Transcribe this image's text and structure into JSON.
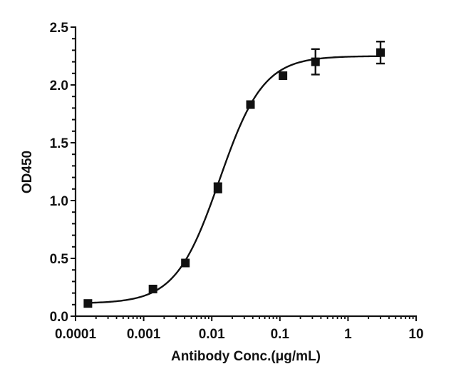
{
  "chart_data": {
    "type": "scatter",
    "title": "",
    "xlabel": "Antibody Conc.(μg/mL)",
    "ylabel": "OD450",
    "xscale": "log",
    "xlim": [
      0.0001,
      10
    ],
    "ylim": [
      0,
      2.5
    ],
    "x_ticks": [
      0.0001,
      0.001,
      0.01,
      0.1,
      1,
      10
    ],
    "x_tick_labels": [
      "0.0001",
      "0.001",
      "0.01",
      "0.1",
      "1",
      "10"
    ],
    "y_ticks": [
      0,
      0.5,
      1.0,
      1.5,
      2.0,
      2.5
    ],
    "y_tick_labels": [
      "0.0",
      "0.5",
      "1.0",
      "1.5",
      "2.0",
      "2.5"
    ],
    "y_minor_step": 0.1,
    "grid": false,
    "legend": null,
    "series": [
      {
        "name": "OD450",
        "marker": "square",
        "color": "#111111",
        "x": [
          0.000152,
          0.00137,
          0.0041,
          0.0123,
          0.037,
          0.111,
          0.333,
          3.0
        ],
        "y": [
          0.11,
          0.235,
          0.46,
          1.11,
          1.83,
          2.08,
          2.2,
          2.28
        ],
        "error": [
          0.0,
          0.0,
          0.0,
          0.04,
          0.0,
          0.0,
          0.11,
          0.095
        ]
      }
    ],
    "fit": {
      "type": "4PL",
      "bottom": 0.11,
      "top": 2.25,
      "ec50": 0.013,
      "hill": 1.35,
      "x_range": [
        0.000152,
        3.0
      ],
      "color": "#111111"
    }
  }
}
